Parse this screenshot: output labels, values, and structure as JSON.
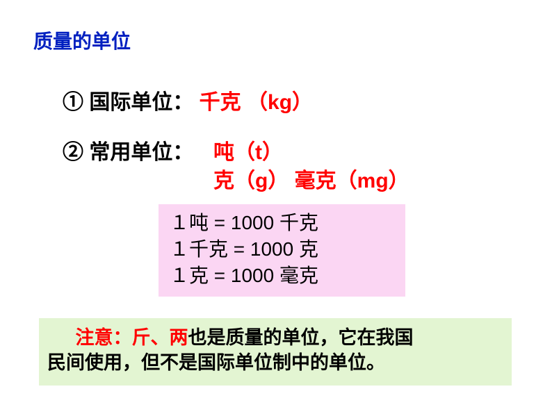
{
  "title": "质量的单位",
  "line1": {
    "label": "① 国际单位：",
    "value": " 千克 （kg）"
  },
  "line2": {
    "label": "② 常用单位：",
    "value1": " 吨（t）",
    "value2a": " 克（g）",
    "value2b": "  毫克（mg）"
  },
  "conversions": {
    "c1": "１吨 = 1000 千克",
    "c2": "１千克 = 1000 克",
    "c3": "１克 = 1000 毫克"
  },
  "note": {
    "prefix": "注意：",
    "highlight": "斤、两",
    "rest1": "也是质量的单位，它在我国",
    "rest2": "民间使用，但不是国际单位制中的单位。"
  },
  "colors": {
    "title": "#0020c0",
    "red": "#ff0000",
    "black": "#000000",
    "conv_bg": "#fbd6f3",
    "note_bg": "#e3f5d2",
    "page_bg": "#ffffff"
  }
}
